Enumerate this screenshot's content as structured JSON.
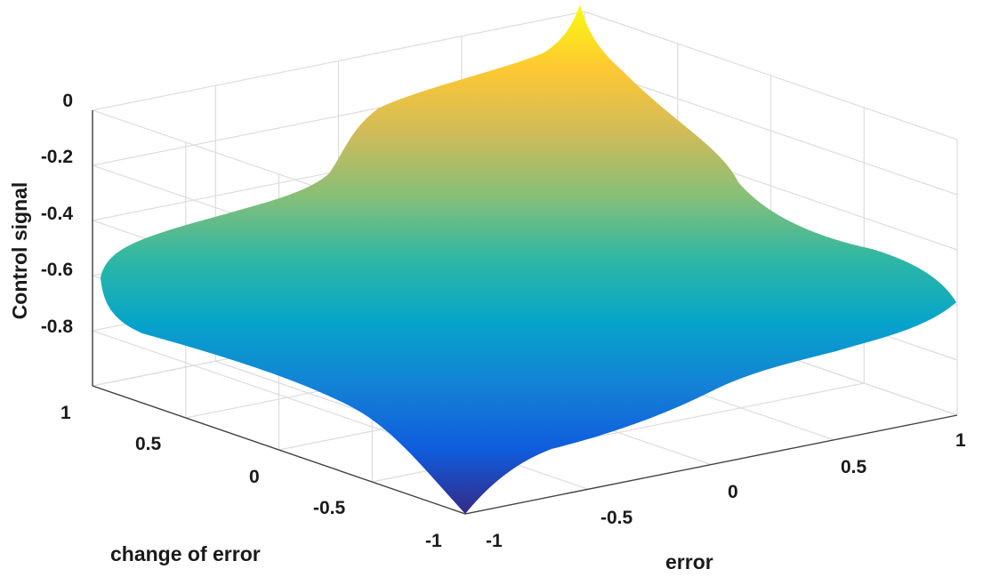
{
  "chart_data": {
    "type": "surface",
    "title": "",
    "xlabel": "error",
    "ylabel": "change of error",
    "zlabel": "Control signal",
    "xlim": [
      -1,
      1
    ],
    "ylim": [
      -1,
      1
    ],
    "zlim": [
      -1,
      0
    ],
    "x_ticks": [
      "-1",
      "-0.5",
      "0",
      "0.5",
      "1"
    ],
    "y_ticks": [
      "-1",
      "-0.5",
      "0",
      "0.5",
      "1"
    ],
    "z_ticks": [
      "0",
      "-0.2",
      "-0.4",
      "-0.6",
      "-0.8"
    ],
    "grid": true,
    "colormap": "parula",
    "corner_values": {
      "error_-1_change_-1": -1.0,
      "error_1_change_-1": -0.62,
      "error_-1_change_1": -0.62,
      "error_1_change_1": 0.05
    },
    "colors": [
      "#352a87",
      "#0f5cdd",
      "#1481d6",
      "#06a4ca",
      "#2eb7a4",
      "#87bf77",
      "#d1bb59",
      "#fec832",
      "#f9fb0e"
    ]
  }
}
